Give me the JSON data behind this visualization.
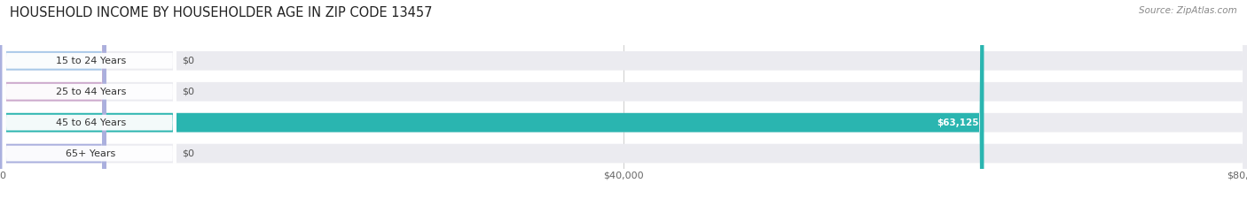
{
  "title": "HOUSEHOLD INCOME BY HOUSEHOLDER AGE IN ZIP CODE 13457",
  "source": "Source: ZipAtlas.com",
  "categories": [
    "15 to 24 Years",
    "25 to 44 Years",
    "45 to 64 Years",
    "65+ Years"
  ],
  "values": [
    0,
    0,
    63125,
    0
  ],
  "bar_colors": [
    "#a8c8e8",
    "#cca8cc",
    "#2ab5b0",
    "#aab0de"
  ],
  "label_colors": [
    "#555555",
    "#555555",
    "#ffffff",
    "#555555"
  ],
  "value_labels": [
    "$0",
    "$0",
    "$63,125",
    "$0"
  ],
  "xlim": [
    0,
    80000
  ],
  "xtick_labels": [
    "$0",
    "$40,000",
    "$80,000"
  ],
  "background_color": "#ffffff",
  "bar_bg_color": "#ebebf0",
  "figsize": [
    14.06,
    2.33
  ],
  "dpi": 100
}
